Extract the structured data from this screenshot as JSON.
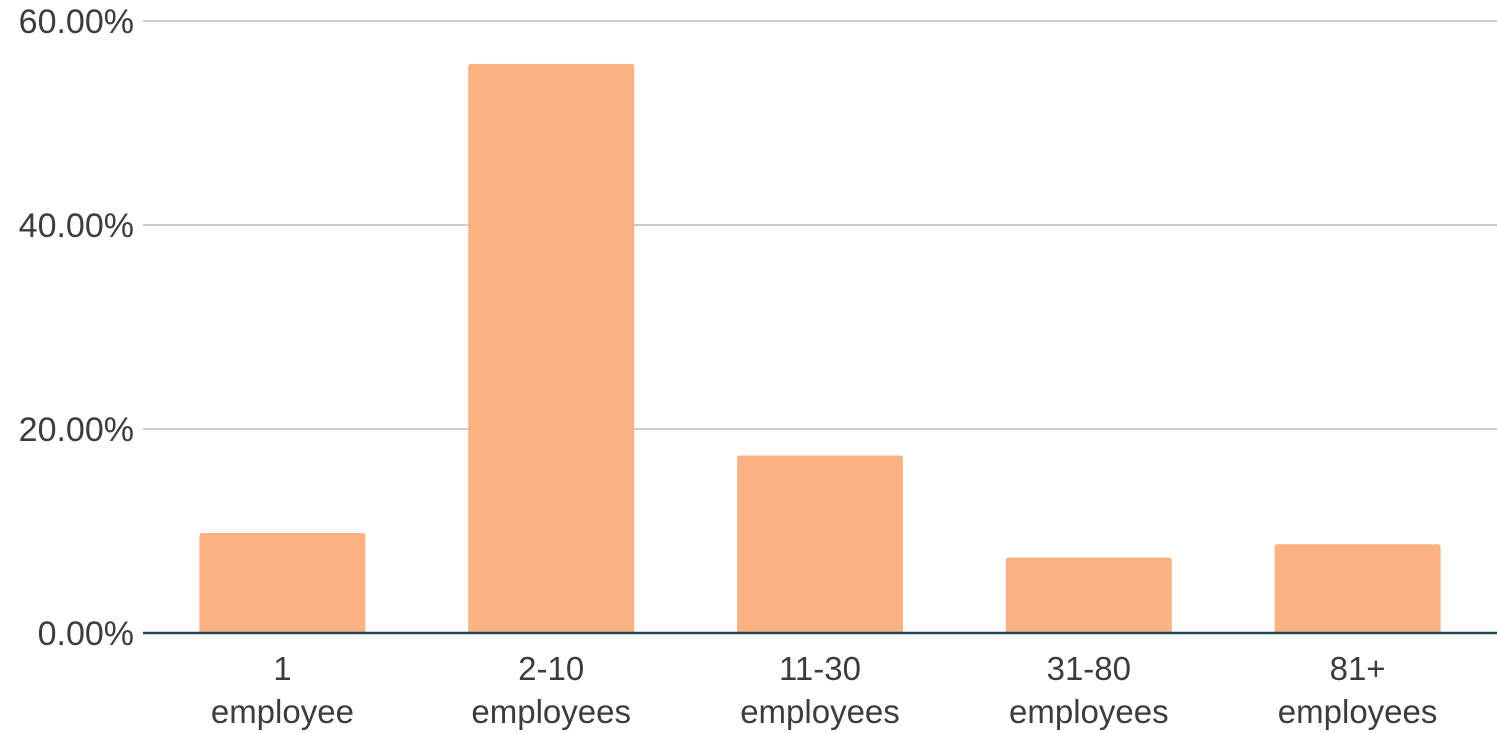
{
  "chart_data": {
    "type": "bar",
    "title": "",
    "xlabel": "",
    "ylabel": "",
    "ylim": [
      0,
      60
    ],
    "y_ticks": [
      0,
      20,
      40,
      60
    ],
    "y_tick_labels": [
      "0.00%",
      "20.00%",
      "40.00%",
      "60.00%"
    ],
    "grid": true,
    "categories": [
      [
        "1",
        "employee"
      ],
      [
        "2-10",
        "employees"
      ],
      [
        "11-30",
        "employees"
      ],
      [
        "31-80",
        "employees"
      ],
      [
        "81+",
        "employees"
      ]
    ],
    "values": [
      9.8,
      55.8,
      17.4,
      7.4,
      8.7
    ],
    "bar_color": "#fcb185",
    "grid_color": "#cccccc",
    "baseline_color": "#1f4e52"
  }
}
